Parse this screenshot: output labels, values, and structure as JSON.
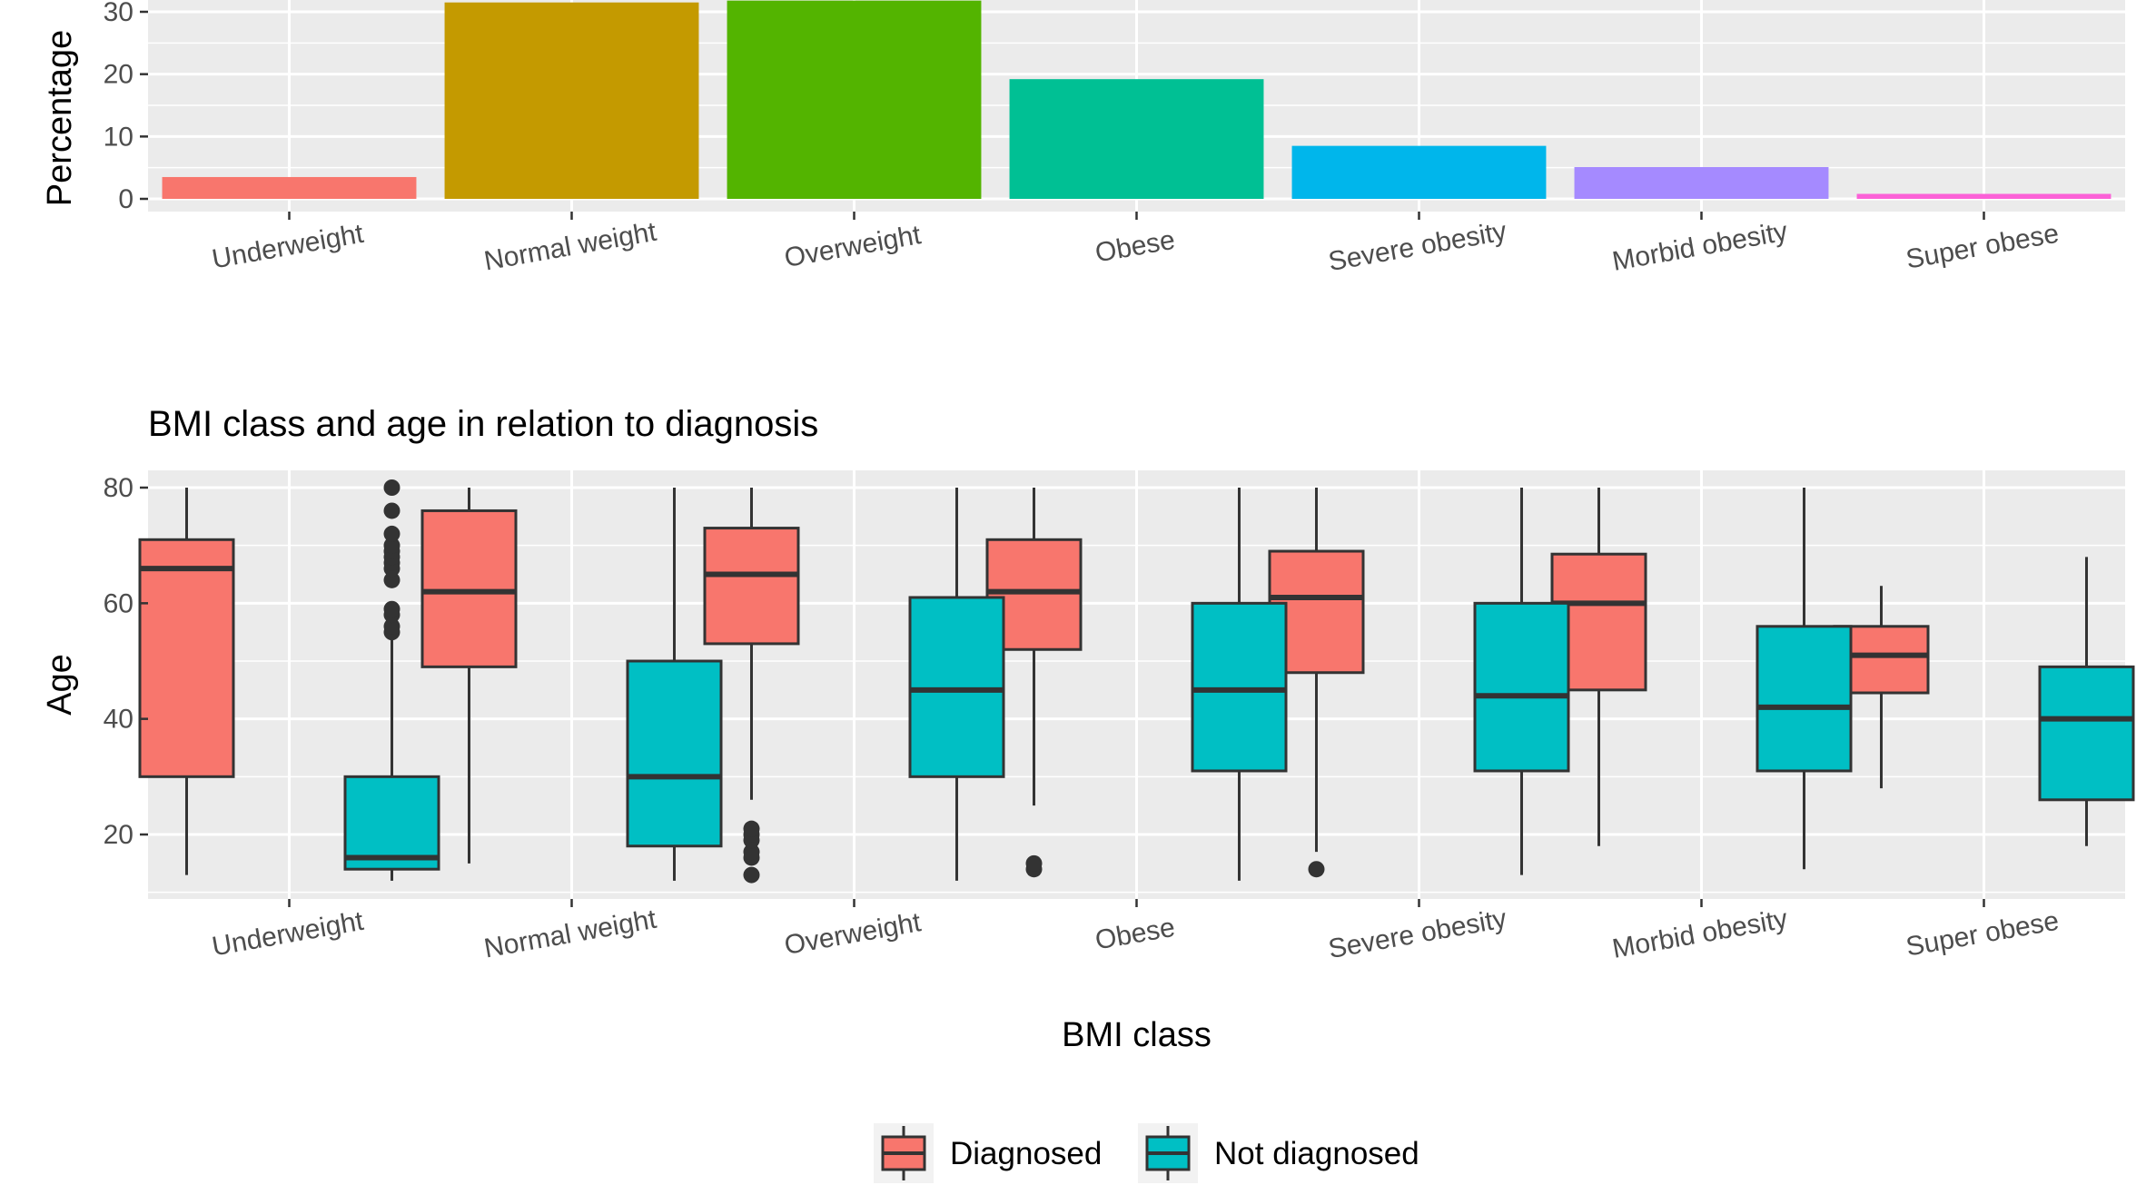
{
  "chart_data": [
    {
      "type": "bar",
      "title": "",
      "xlabel": "",
      "ylabel": "Percentage",
      "ylim": [
        0,
        30
      ],
      "y_ticks": [
        0,
        10,
        20,
        30
      ],
      "categories": [
        "Underweight",
        "Normal weight",
        "Overweight",
        "Obese",
        "Severe obesity",
        "Morbid obesity",
        "Super obese"
      ],
      "values": [
        3.5,
        31.5,
        31.8,
        19.2,
        8.5,
        5.1,
        0.8
      ],
      "colors": [
        "#F8766D",
        "#C49A00",
        "#53B400",
        "#00C094",
        "#00B6EB",
        "#A58AFF",
        "#FB61D7"
      ],
      "grid": true
    },
    {
      "type": "box",
      "title": "BMI class and age in relation to diagnosis",
      "xlabel": "BMI class",
      "ylabel": "Age",
      "ylim": [
        10,
        82
      ],
      "y_ticks": [
        20,
        40,
        60,
        80
      ],
      "categories": [
        "Underweight",
        "Normal weight",
        "Overweight",
        "Obese",
        "Severe obesity",
        "Morbid obesity",
        "Super obese"
      ],
      "legend": {
        "position": "bottom",
        "entries": [
          "Diagnosed",
          "Not diagnosed"
        ]
      },
      "series": [
        {
          "name": "Diagnosed",
          "color": "#F8766D",
          "boxes": [
            {
              "min": 13,
              "q1": 30,
              "median": 66,
              "q3": 71,
              "max": 80,
              "outliers": []
            },
            {
              "min": 15,
              "q1": 49,
              "median": 62,
              "q3": 76,
              "max": 80,
              "outliers": []
            },
            {
              "min": 26,
              "q1": 53,
              "median": 65,
              "q3": 73,
              "max": 80,
              "outliers": [
                13,
                16,
                17,
                19,
                20,
                21
              ]
            },
            {
              "min": 25,
              "q1": 52,
              "median": 62,
              "q3": 71,
              "max": 80,
              "outliers": [
                14,
                15
              ]
            },
            {
              "min": 17,
              "q1": 48,
              "median": 61,
              "q3": 69,
              "max": 80,
              "outliers": [
                14
              ]
            },
            {
              "min": 18,
              "q1": 45,
              "median": 60,
              "q3": 68.5,
              "max": 80,
              "outliers": []
            },
            {
              "min": 28,
              "q1": 44.5,
              "median": 51,
              "q3": 56,
              "max": 63,
              "outliers": []
            }
          ]
        },
        {
          "name": "Not diagnosed",
          "color": "#00BFC4",
          "boxes": [
            {
              "min": 12,
              "q1": 14,
              "median": 16,
              "q3": 30,
              "max": 54,
              "outliers": [
                55,
                56,
                58,
                59,
                64,
                66,
                67,
                68,
                69,
                70,
                72,
                76,
                80
              ]
            },
            {
              "min": 12,
              "q1": 18,
              "median": 30,
              "q3": 50,
              "max": 80,
              "outliers": []
            },
            {
              "min": 12,
              "q1": 30,
              "median": 45,
              "q3": 61,
              "max": 80,
              "outliers": []
            },
            {
              "min": 12,
              "q1": 31,
              "median": 45,
              "q3": 60,
              "max": 80,
              "outliers": []
            },
            {
              "min": 13,
              "q1": 31,
              "median": 44,
              "q3": 60,
              "max": 80,
              "outliers": []
            },
            {
              "min": 14,
              "q1": 31,
              "median": 42,
              "q3": 56,
              "max": 80,
              "outliers": []
            },
            {
              "min": 18,
              "q1": 26,
              "median": 40,
              "q3": 49,
              "max": 68,
              "outliers": []
            }
          ]
        }
      ],
      "grid": true
    }
  ]
}
